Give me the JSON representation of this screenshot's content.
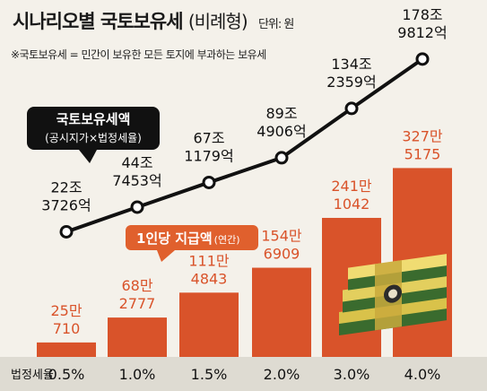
{
  "header": {
    "title": "시나리오별 국토보유세",
    "subtitle": "(비례형)",
    "unit": "단위: 원",
    "note": "※국토보유세 = 민간이 보유한 모든 토지에 부과하는 보유세"
  },
  "legend": {
    "line_title": "국토보유세액",
    "line_sub": "(공시지가×법정세율)",
    "bar_title": "1인당 지급액",
    "bar_sub": "(연간)"
  },
  "colors": {
    "bar": "#d9532a",
    "bar_label": "#d9532a",
    "line": "#111111",
    "callout_bg": "#111111",
    "bar_callout_bg": "#e0602d"
  },
  "chart_data": {
    "type": "bar+line",
    "xlabel": "법정세율",
    "categories": [
      "0.5%",
      "1.0%",
      "1.5%",
      "2.0%",
      "3.0%",
      "4.0%"
    ],
    "series": [
      {
        "name": "국토보유세액",
        "type": "line",
        "values": [
          22.3726,
          44.7453,
          67.1179,
          89.4906,
          134.2359,
          178.9812
        ],
        "labels": [
          [
            "22조",
            "3726억"
          ],
          [
            "44조",
            "7453억"
          ],
          [
            "67조",
            "1179억"
          ],
          [
            "89조",
            "4906억"
          ],
          [
            "134조",
            "2359억"
          ],
          [
            "178조",
            "9812억"
          ]
        ]
      },
      {
        "name": "1인당 지급액",
        "type": "bar",
        "values": [
          250710,
          682777,
          1114843,
          1546909,
          2411042,
          3275175
        ],
        "labels": [
          [
            "25만",
            "710"
          ],
          [
            "68만",
            "2777"
          ],
          [
            "111만",
            "4843"
          ],
          [
            "154만",
            "6909"
          ],
          [
            "241만",
            "1042"
          ],
          [
            "327만",
            "5175"
          ]
        ]
      }
    ]
  }
}
